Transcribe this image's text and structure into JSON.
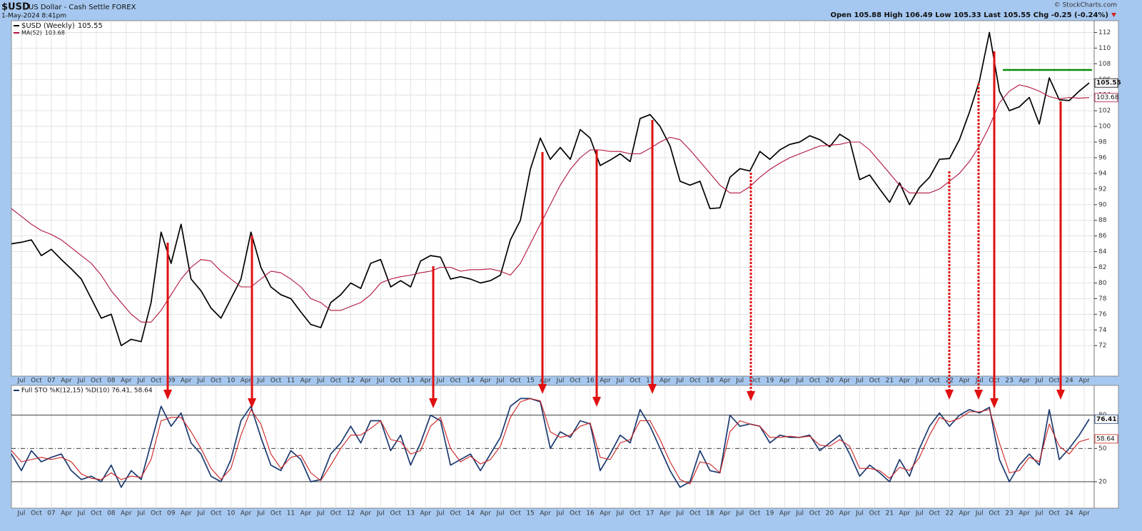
{
  "header": {
    "symbol": "$USD",
    "name": "US Dollar - Cash Settle FOREX",
    "date": "1-May-2024 8:41pm",
    "quote": "Open 105.88 High 106.49 Low 105.33 Last 105.55 Chg -0.25 (-0.24%)",
    "credit": "© StockCharts.com"
  },
  "chart_data": [
    {
      "type": "line",
      "x": [
        "2006-05",
        "2006-07",
        "2006-09",
        "2006-11",
        "2007-01",
        "2007-03",
        "2007-05",
        "2007-07",
        "2007-09",
        "2007-11",
        "2008-01",
        "2008-03",
        "2008-05",
        "2008-07",
        "2008-09",
        "2008-11",
        "2009-01",
        "2009-03",
        "2009-05",
        "2009-07",
        "2009-09",
        "2009-11",
        "2010-01",
        "2010-03",
        "2010-05",
        "2010-07",
        "2010-09",
        "2010-11",
        "2011-01",
        "2011-03",
        "2011-05",
        "2011-07",
        "2011-09",
        "2011-11",
        "2012-01",
        "2012-03",
        "2012-05",
        "2012-07",
        "2012-09",
        "2012-11",
        "2013-01",
        "2013-03",
        "2013-05",
        "2013-07",
        "2013-09",
        "2013-11",
        "2014-01",
        "2014-03",
        "2014-05",
        "2014-07",
        "2014-09",
        "2014-11",
        "2015-01",
        "2015-03",
        "2015-05",
        "2015-07",
        "2015-09",
        "2015-11",
        "2016-01",
        "2016-03",
        "2016-05",
        "2016-07",
        "2016-09",
        "2016-11",
        "2017-01",
        "2017-03",
        "2017-05",
        "2017-07",
        "2017-09",
        "2017-11",
        "2018-01",
        "2018-03",
        "2018-05",
        "2018-07",
        "2018-09",
        "2018-11",
        "2019-01",
        "2019-03",
        "2019-05",
        "2019-07",
        "2019-09",
        "2019-11",
        "2020-01",
        "2020-03",
        "2020-05",
        "2020-07",
        "2020-09",
        "2020-11",
        "2021-01",
        "2021-03",
        "2021-05",
        "2021-07",
        "2021-09",
        "2021-11",
        "2022-01",
        "2022-03",
        "2022-05",
        "2022-07",
        "2022-09",
        "2022-11",
        "2023-01",
        "2023-03",
        "2023-05",
        "2023-07",
        "2023-09",
        "2023-11",
        "2024-01",
        "2024-03",
        "2024-05"
      ],
      "series": [
        {
          "name": "$USD (Weekly)",
          "color": "#000000",
          "values": [
            85.0,
            85.2,
            85.5,
            83.5,
            84.3,
            83.0,
            81.8,
            80.5,
            78.0,
            75.5,
            76.0,
            72.0,
            72.8,
            72.5,
            77.5,
            86.5,
            82.5,
            87.5,
            80.5,
            79.0,
            76.8,
            75.5,
            78.0,
            80.5,
            86.5,
            82.0,
            79.5,
            78.5,
            78.0,
            76.3,
            74.7,
            74.3,
            77.5,
            78.5,
            80.0,
            79.3,
            82.5,
            83.0,
            79.5,
            80.3,
            79.5,
            82.8,
            83.5,
            83.3,
            80.5,
            80.8,
            80.5,
            80.0,
            80.3,
            81.0,
            85.5,
            88.0,
            94.5,
            98.5,
            95.8,
            97.3,
            95.8,
            99.6,
            98.5,
            95.0,
            95.7,
            96.5,
            95.5,
            101.0,
            101.5,
            100.0,
            97.5,
            93.0,
            92.5,
            93.0,
            89.5,
            89.6,
            93.5,
            94.6,
            94.3,
            96.8,
            95.8,
            97.0,
            97.7,
            98.0,
            98.8,
            98.3,
            97.4,
            99.0,
            98.2,
            93.2,
            93.8,
            92.0,
            90.3,
            92.8,
            90.0,
            92.2,
            93.5,
            95.8,
            95.9,
            98.3,
            101.8,
            105.8,
            112.0,
            104.5,
            102.0,
            102.5,
            103.7,
            100.3,
            106.2,
            103.4,
            103.3,
            104.5,
            105.55
          ]
        },
        {
          "name": "MA(52)",
          "color": "#b0133a",
          "values": [
            89.5,
            88.5,
            87.5,
            86.7,
            86.2,
            85.5,
            84.5,
            83.5,
            82.5,
            81,
            79,
            77.5,
            76,
            75,
            75,
            76.5,
            78.5,
            80.5,
            82,
            83,
            82.8,
            81.5,
            80.5,
            79.5,
            79.5,
            80.5,
            81.5,
            81.3,
            80.5,
            79.5,
            78,
            77.5,
            76.5,
            76.5,
            77,
            77.5,
            78.5,
            80,
            80.5,
            80.8,
            81,
            81.3,
            81.5,
            82,
            82,
            81.5,
            81.7,
            81.7,
            81.8,
            81.5,
            81,
            82.5,
            85,
            87.5,
            90,
            92.5,
            94.5,
            96,
            97,
            97,
            96.8,
            96.8,
            96.5,
            96.5,
            97.2,
            98,
            98.6,
            98.3,
            97,
            95.5,
            94,
            92.5,
            91.5,
            91.5,
            92.3,
            93.5,
            94.5,
            95.3,
            96,
            96.5,
            97,
            97.5,
            97.6,
            97.7,
            98,
            98,
            97,
            95.5,
            94,
            92.5,
            91.5,
            91.5,
            91.5,
            92,
            93,
            94,
            95.5,
            97.5,
            100,
            103,
            104.5,
            105.3,
            105,
            104.5,
            103.8,
            103.5,
            103.7,
            103.6,
            103.68
          ]
        }
      ],
      "xlim": [
        "2006-05",
        "2024-06"
      ],
      "xticks": [
        {
          "value": "2006-07",
          "label": "Jul"
        },
        {
          "value": "2006-10",
          "label": "Oct"
        },
        {
          "value": "2007-01",
          "label": "07"
        },
        {
          "value": "2007-04",
          "label": "Apr"
        },
        {
          "value": "2007-07",
          "label": "Jul"
        },
        {
          "value": "2007-10",
          "label": "Oct"
        },
        {
          "value": "2008-01",
          "label": "08"
        },
        {
          "value": "2008-04",
          "label": "Apr"
        },
        {
          "value": "2008-07",
          "label": "Jul"
        },
        {
          "value": "2008-10",
          "label": "Oct"
        },
        {
          "value": "2009-01",
          "label": "09"
        },
        {
          "value": "2009-04",
          "label": "Apr"
        },
        {
          "value": "2009-07",
          "label": "Jul"
        },
        {
          "value": "2009-10",
          "label": "Oct"
        },
        {
          "value": "2010-01",
          "label": "10"
        },
        {
          "value": "2010-04",
          "label": "Apr"
        },
        {
          "value": "2010-07",
          "label": "Jul"
        },
        {
          "value": "2010-10",
          "label": "Oct"
        },
        {
          "value": "2011-01",
          "label": "11"
        },
        {
          "value": "2011-04",
          "label": "Apr"
        },
        {
          "value": "2011-07",
          "label": "Jul"
        },
        {
          "value": "2011-10",
          "label": "Oct"
        },
        {
          "value": "2012-01",
          "label": "12"
        },
        {
          "value": "2012-04",
          "label": "Apr"
        },
        {
          "value": "2012-07",
          "label": "Jul"
        },
        {
          "value": "2012-10",
          "label": "Oct"
        },
        {
          "value": "2013-01",
          "label": "13"
        },
        {
          "value": "2013-04",
          "label": "Apr"
        },
        {
          "value": "2013-07",
          "label": "Jul"
        },
        {
          "value": "2013-10",
          "label": "Oct"
        },
        {
          "value": "2014-01",
          "label": "14"
        },
        {
          "value": "2014-04",
          "label": "Apr"
        },
        {
          "value": "2014-07",
          "label": "Jul"
        },
        {
          "value": "2014-10",
          "label": "Oct"
        },
        {
          "value": "2015-01",
          "label": "15"
        },
        {
          "value": "2015-04",
          "label": "Apr"
        },
        {
          "value": "2015-07",
          "label": "Jul"
        },
        {
          "value": "2015-10",
          "label": "Oct"
        },
        {
          "value": "2016-01",
          "label": "16"
        },
        {
          "value": "2016-04",
          "label": "Apr"
        },
        {
          "value": "2016-07",
          "label": "Jul"
        },
        {
          "value": "2016-10",
          "label": "Oct"
        },
        {
          "value": "2017-01",
          "label": "17"
        },
        {
          "value": "2017-04",
          "label": "Apr"
        },
        {
          "value": "2017-07",
          "label": "Jul"
        },
        {
          "value": "2017-10",
          "label": "Oct"
        },
        {
          "value": "2018-01",
          "label": "18"
        },
        {
          "value": "2018-04",
          "label": "Apr"
        },
        {
          "value": "2018-07",
          "label": "Jul"
        },
        {
          "value": "2018-10",
          "label": "Oct"
        },
        {
          "value": "2019-01",
          "label": "19"
        },
        {
          "value": "2019-04",
          "label": "Apr"
        },
        {
          "value": "2019-07",
          "label": "Jul"
        },
        {
          "value": "2019-10",
          "label": "Oct"
        },
        {
          "value": "2020-01",
          "label": "20"
        },
        {
          "value": "2020-04",
          "label": "Apr"
        },
        {
          "value": "2020-07",
          "label": "Jul"
        },
        {
          "value": "2020-10",
          "label": "Oct"
        },
        {
          "value": "2021-01",
          "label": "21"
        },
        {
          "value": "2021-04",
          "label": "Apr"
        },
        {
          "value": "2021-07",
          "label": "Jul"
        },
        {
          "value": "2021-10",
          "label": "Oct"
        },
        {
          "value": "2022-01",
          "label": "22"
        },
        {
          "value": "2022-04",
          "label": "Apr"
        },
        {
          "value": "2022-07",
          "label": "Jul"
        },
        {
          "value": "2022-10",
          "label": "Oct"
        },
        {
          "value": "2023-01",
          "label": "23"
        },
        {
          "value": "2023-04",
          "label": "Apr"
        },
        {
          "value": "2023-07",
          "label": "Jul"
        },
        {
          "value": "2023-10",
          "label": "Oct"
        },
        {
          "value": "2024-01",
          "label": "24"
        },
        {
          "value": "2024-04",
          "label": "Apr"
        }
      ],
      "ylim": [
        68.1,
        113.5
      ],
      "yticks": [
        72,
        74,
        76,
        78,
        80,
        82,
        84,
        86,
        88,
        90,
        92,
        94,
        96,
        98,
        100,
        102,
        104,
        106,
        108,
        110,
        112
      ],
      "grid": true
    },
    {
      "type": "line",
      "title": "Full STO %K(12,15) %D(10) 76.41, 58.64",
      "series": [
        {
          "color": "#1c3a70",
          "values": [
            45,
            30,
            48,
            38,
            42,
            45,
            30,
            22,
            25,
            20,
            35,
            15,
            30,
            22,
            55,
            88,
            70,
            82,
            55,
            45,
            25,
            20,
            40,
            75,
            88,
            60,
            35,
            30,
            48,
            40,
            20,
            22,
            45,
            55,
            70,
            55,
            75,
            75,
            48,
            62,
            35,
            55,
            80,
            75,
            35,
            40,
            45,
            30,
            45,
            60,
            88,
            95,
            95,
            92,
            50,
            65,
            60,
            75,
            72,
            30,
            45,
            62,
            55,
            85,
            70,
            50,
            30,
            15,
            20,
            48,
            30,
            28,
            80,
            70,
            72,
            70,
            55,
            62,
            60,
            60,
            62,
            48,
            55,
            62,
            45,
            25,
            35,
            28,
            20,
            40,
            25,
            50,
            70,
            82,
            70,
            80,
            85,
            82,
            87,
            40,
            20,
            35,
            45,
            35,
            85,
            40,
            50,
            62,
            76.41
          ]
        },
        {
          "color": "#cc2222",
          "values": [
            48,
            38,
            40,
            42,
            40,
            42,
            38,
            27,
            23,
            22,
            28,
            22,
            25,
            24,
            40,
            75,
            78,
            78,
            65,
            50,
            32,
            22,
            32,
            62,
            85,
            72,
            45,
            32,
            42,
            44,
            28,
            21,
            35,
            50,
            62,
            62,
            68,
            75,
            58,
            56,
            45,
            48,
            70,
            78,
            50,
            38,
            43,
            36,
            40,
            52,
            78,
            92,
            95,
            93,
            65,
            60,
            62,
            70,
            73,
            42,
            40,
            55,
            58,
            75,
            75,
            58,
            38,
            22,
            18,
            38,
            36,
            28,
            65,
            75,
            72,
            70,
            60,
            60,
            61,
            60,
            61,
            53,
            52,
            58,
            52,
            32,
            32,
            30,
            23,
            33,
            30,
            42,
            62,
            78,
            74,
            77,
            83,
            83,
            85,
            55,
            28,
            30,
            42,
            38,
            72,
            52,
            45,
            56,
            58.64
          ]
        }
      ],
      "ylim": [
        -3.8,
        106.8
      ],
      "yticks": [
        20,
        50,
        80
      ],
      "grid": true
    }
  ]
}
